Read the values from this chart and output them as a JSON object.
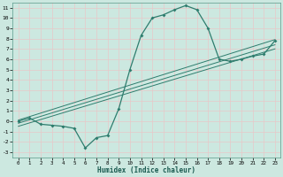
{
  "xlabel": "Humidex (Indice chaleur)",
  "bg_color": "#cce8e0",
  "grid_color": "#b0d8cc",
  "line_color": "#2e7d6e",
  "xlim": [
    -0.5,
    23.5
  ],
  "ylim": [
    -3.5,
    11.5
  ],
  "x_ticks": [
    0,
    1,
    2,
    3,
    4,
    5,
    6,
    7,
    8,
    9,
    10,
    11,
    12,
    13,
    14,
    15,
    16,
    17,
    18,
    19,
    20,
    21,
    22,
    23
  ],
  "y_ticks": [
    -3,
    -2,
    -1,
    0,
    1,
    2,
    3,
    4,
    5,
    6,
    7,
    8,
    9,
    10,
    11
  ],
  "curve_x": [
    0,
    1,
    2,
    3,
    4,
    5,
    6,
    7,
    8,
    9,
    10,
    11,
    12,
    13,
    14,
    15,
    16,
    17,
    18,
    19,
    20,
    21,
    22,
    23
  ],
  "curve_y": [
    0.0,
    0.3,
    -0.3,
    -0.4,
    -0.5,
    -0.7,
    -2.6,
    -1.6,
    -1.4,
    1.2,
    5.0,
    8.3,
    10.0,
    10.3,
    10.8,
    11.2,
    10.8,
    9.0,
    6.0,
    5.8,
    6.0,
    6.3,
    6.5,
    7.8
  ],
  "ref_lines": [
    {
      "x": [
        0,
        23
      ],
      "y": [
        -0.5,
        7.0
      ]
    },
    {
      "x": [
        0,
        23
      ],
      "y": [
        -0.2,
        7.4
      ]
    },
    {
      "x": [
        0,
        23
      ],
      "y": [
        0.1,
        7.9
      ]
    }
  ]
}
